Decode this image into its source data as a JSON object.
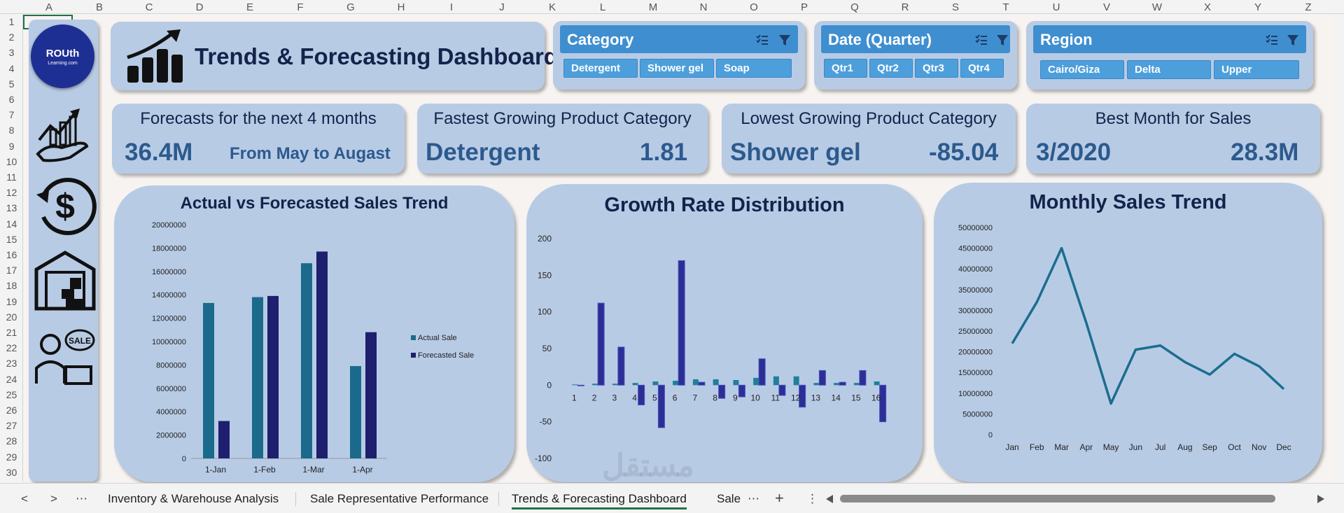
{
  "columns": [
    "A",
    "B",
    "C",
    "D",
    "E",
    "F",
    "G",
    "H",
    "I",
    "J",
    "K",
    "L",
    "M",
    "N",
    "O",
    "P",
    "Q",
    "R",
    "S",
    "T",
    "U",
    "V",
    "W",
    "X",
    "Y",
    "Z"
  ],
  "rows": [
    "1",
    "2",
    "3",
    "4",
    "5",
    "6",
    "7",
    "8",
    "9",
    "10",
    "11",
    "12",
    "13",
    "14",
    "15",
    "16",
    "17",
    "18",
    "19",
    "20",
    "21",
    "22",
    "23",
    "24",
    "25",
    "26",
    "27",
    "28",
    "29",
    "30"
  ],
  "logo": {
    "line1": "ROUth",
    "line2": "Learning.com"
  },
  "title": "Trends & Forecasting Dashboard",
  "slicers": [
    {
      "title": "Category",
      "items": [
        "Detergent",
        "Shower gel",
        "Soap"
      ]
    },
    {
      "title": "Date (Quarter)",
      "items": [
        "Qtr1",
        "Qtr2",
        "Qtr3",
        "Qtr4"
      ]
    },
    {
      "title": "Region",
      "items": [
        "Cairo/Giza",
        "Delta",
        "Upper"
      ]
    }
  ],
  "kpis": [
    {
      "title": "Forecasts for the next 4 months",
      "value": "36.4M",
      "sub": "From May to Augast"
    },
    {
      "title": "Fastest Growing Product Category",
      "value": "Detergent",
      "sub": "1.81"
    },
    {
      "title": "Lowest Growing Product Category",
      "value": "Shower gel",
      "sub": "-85.04"
    },
    {
      "title": "Best Month for Sales",
      "value": "3/2020",
      "sub": "28.3M"
    }
  ],
  "chart_data": [
    {
      "type": "bar",
      "title": "Actual vs Forecasted Sales Trend",
      "categories": [
        "1-Jan",
        "1-Feb",
        "1-Mar",
        "1-Apr"
      ],
      "series": [
        {
          "name": "Actual Sale",
          "values": [
            13300000,
            13800000,
            16700000,
            7900000
          ]
        },
        {
          "name": "Forecasted Sale",
          "values": [
            3200000,
            13900000,
            17700000,
            10800000
          ]
        }
      ],
      "ylim": [
        0,
        20000000
      ],
      "yticks": [
        "0",
        "2000000",
        "4000000",
        "6000000",
        "8000000",
        "10000000",
        "12000000",
        "14000000",
        "16000000",
        "18000000",
        "20000000"
      ],
      "legend": "right"
    },
    {
      "type": "bar",
      "title": "Growth Rate Distribution",
      "categories": [
        "1",
        "2",
        "3",
        "4",
        "5",
        "6",
        "7",
        "8",
        "9",
        "10",
        "11",
        "12",
        "13",
        "14",
        "15",
        "16"
      ],
      "series": [
        {
          "values": [
            1,
            2,
            2,
            3,
            5,
            6,
            8,
            8,
            7,
            10,
            12,
            12,
            3,
            3,
            3,
            5
          ]
        },
        {
          "values": [
            0,
            112,
            52,
            -27,
            -58,
            170,
            4,
            -18,
            -16,
            36,
            -14,
            -30,
            20,
            4,
            20,
            -50
          ]
        }
      ],
      "ylim": [
        -100,
        200
      ],
      "yticks": [
        "-100",
        "-50",
        "0",
        "50",
        "100",
        "150",
        "200"
      ]
    },
    {
      "type": "line",
      "title": "Monthly Sales Trend",
      "categories": [
        "Jan",
        "Feb",
        "Mar",
        "Apr",
        "May",
        "Jun",
        "Jul",
        "Aug",
        "Sep",
        "Oct",
        "Nov",
        "Dec"
      ],
      "series": [
        {
          "values": [
            22000000,
            32000000,
            45000000,
            27000000,
            7500000,
            20500000,
            21500000,
            17500000,
            14500000,
            19500000,
            16500000,
            11000000
          ]
        }
      ],
      "ylim": [
        0,
        50000000
      ],
      "yticks": [
        "0",
        "5000000",
        "10000000",
        "15000000",
        "20000000",
        "25000000",
        "30000000",
        "35000000",
        "40000000",
        "45000000",
        "50000000"
      ]
    }
  ],
  "colors": {
    "actual": "#1b6a8c",
    "forecast": "#1e1f6e",
    "growthA": "#1f7f99",
    "growthB": "#2b2f95",
    "line": "#1a6e8f"
  },
  "tabs": [
    "Inventory & Warehouse Analysis",
    "Sale Representative Performance",
    "Trends & Forecasting Dashboard",
    "Sale"
  ],
  "tabnav": {
    "prev": "<",
    "next": ">",
    "more": "⋯",
    "more2": "⋯",
    "add": "+",
    "menu": "⋮"
  },
  "watermark": "مستقل"
}
